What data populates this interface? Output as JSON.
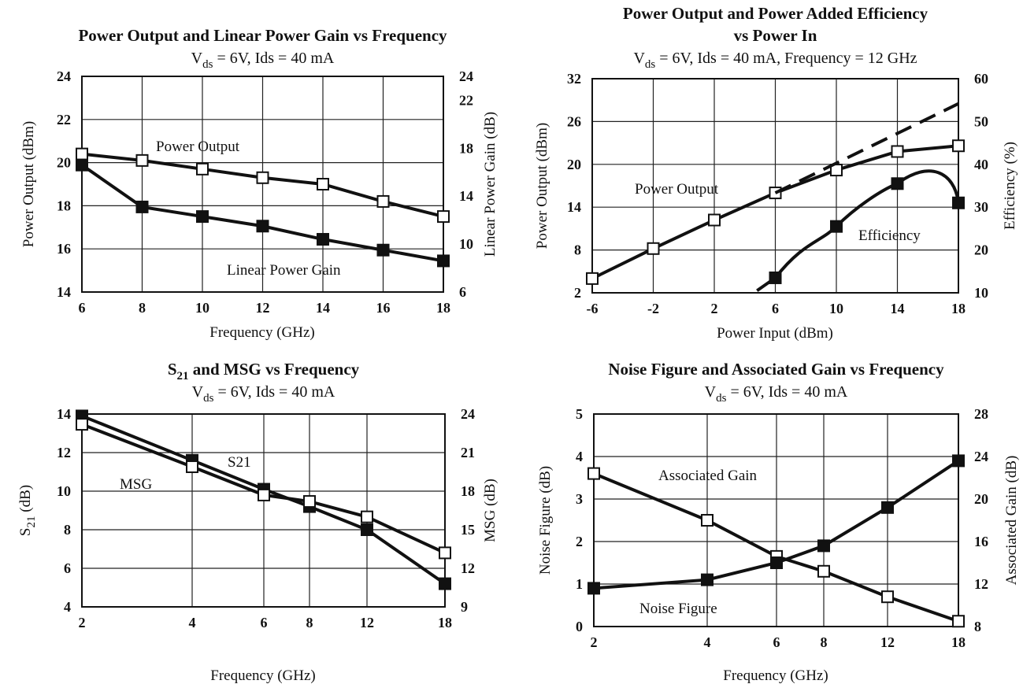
{
  "chart_data": [
    {
      "type": "line",
      "title": "Power Output and Linear Power Gain vs Frequency",
      "subtitle": [
        "V",
        "ds",
        " = 6V, Ids = 40 mA"
      ],
      "xlabel": "Frequency (GHz)",
      "ylabel": "Power Output (dBm)",
      "y2label": "Linear Power Gain (dB)",
      "x": [
        6,
        8,
        10,
        12,
        14,
        16,
        18
      ],
      "xlim": [
        6,
        18
      ],
      "ylim": [
        14,
        24
      ],
      "y2lim": [
        6,
        24
      ],
      "xticks": [
        "6",
        "8",
        "10",
        "12",
        "14",
        "16",
        "18"
      ],
      "yticks": [
        "14",
        "16",
        "18",
        "20",
        "22",
        "24"
      ],
      "y2ticks": [
        "6",
        "10",
        "14",
        "18",
        "22",
        "24"
      ],
      "grid": true,
      "series": [
        {
          "name": "Power Output",
          "axis": "left",
          "marker": "open-square",
          "values": [
            20.4,
            20.1,
            19.7,
            19.3,
            19.0,
            18.2,
            17.5
          ]
        },
        {
          "name": "Linear Power Gain",
          "axis": "right",
          "marker": "filled-square",
          "values": [
            16.6,
            13.1,
            12.3,
            11.5,
            10.4,
            9.5,
            8.6
          ]
        }
      ]
    },
    {
      "type": "line",
      "title": [
        "Power Output and Power Added Efficiency",
        "vs Power In"
      ],
      "subtitle": [
        "V",
        "ds",
        " = 6V, Ids = 40 mA, Frequency = 12 GHz"
      ],
      "xlabel": "Power Input (dBm)",
      "ylabel": "Power Output (dBm)",
      "y2label": "Efficiency (%)",
      "xlim": [
        -6,
        18
      ],
      "ylim": [
        2,
        32
      ],
      "y2lim": [
        10,
        60
      ],
      "xticks": [
        "-6",
        "-2",
        "2",
        "6",
        "10",
        "14",
        "18"
      ],
      "yticks": [
        "2",
        "8",
        "14",
        "20",
        "26",
        "32"
      ],
      "y2ticks": [
        "10",
        "20",
        "30",
        "40",
        "50",
        "60"
      ],
      "grid": true,
      "series": [
        {
          "name": "Power Output",
          "axis": "left",
          "marker": "open-square",
          "x": [
            -6,
            -2,
            2,
            6,
            10,
            14,
            18
          ],
          "values": [
            4.0,
            8.2,
            12.2,
            16.0,
            19.2,
            21.8,
            22.6
          ]
        },
        {
          "name": "Efficiency",
          "axis": "right",
          "marker": "filled-square",
          "x": [
            6,
            10,
            14,
            18
          ],
          "values": [
            13.5,
            25.5,
            35.5,
            31.0
          ]
        },
        {
          "axis": "left",
          "style": "dashed",
          "x": [
            6,
            18
          ],
          "values": [
            16.0,
            28.5
          ]
        }
      ]
    },
    {
      "type": "line",
      "title": [
        "S",
        "21",
        " and MSG vs Frequency"
      ],
      "subtitle": [
        "V",
        "ds",
        " = 6V, Ids = 40 mA"
      ],
      "xlabel": "Frequency (GHz)",
      "ylabel": [
        "S",
        "21",
        " (dB)"
      ],
      "y2label": "MSG (dB)",
      "x": [
        2,
        4,
        6,
        8,
        12,
        18
      ],
      "xlim": [
        2,
        18
      ],
      "ylim": [
        4,
        14
      ],
      "y2lim": [
        9,
        24
      ],
      "xticks": [
        "2",
        "4",
        "6",
        "8",
        "12",
        "18"
      ],
      "yticks": [
        "4",
        "6",
        "8",
        "10",
        "12",
        "14"
      ],
      "y2ticks": [
        "9",
        "12",
        "15",
        "18",
        "21",
        "24"
      ],
      "grid": true,
      "series": [
        {
          "name": "S21",
          "axis": "left",
          "marker": "filled-square",
          "values": [
            13.9,
            11.6,
            10.1,
            9.2,
            8.0,
            5.2
          ]
        },
        {
          "name": "MSG",
          "axis": "right",
          "marker": "open-square",
          "values": [
            23.2,
            19.9,
            17.7,
            17.2,
            16.0,
            13.2
          ]
        }
      ]
    },
    {
      "type": "line",
      "title": "Noise Figure and Associated Gain vs Frequency",
      "subtitle": [
        "V",
        "ds",
        " = 6V, Ids = 40 mA"
      ],
      "xlabel": "Frequency (GHz)",
      "ylabel": "Noise Figure (dB)",
      "y2label": "Associated Gain (dB)",
      "x": [
        2,
        4,
        6,
        8,
        12,
        18
      ],
      "xlim": [
        2,
        18
      ],
      "ylim": [
        0,
        5
      ],
      "y2lim": [
        8,
        28
      ],
      "xticks": [
        "2",
        "4",
        "6",
        "8",
        "12",
        "18"
      ],
      "yticks": [
        "0",
        "1",
        "2",
        "3",
        "4",
        "5"
      ],
      "y2ticks": [
        "8",
        "12",
        "16",
        "20",
        "24",
        "28"
      ],
      "grid": true,
      "series": [
        {
          "name": "Associated Gain",
          "axis": "right",
          "marker": "open-square",
          "values": [
            22.4,
            18.0,
            14.6,
            13.2,
            10.8,
            8.5
          ]
        },
        {
          "name": "Noise Figure",
          "axis": "left",
          "marker": "filled-square",
          "values": [
            0.9,
            1.1,
            1.5,
            1.9,
            2.8,
            3.9
          ]
        }
      ]
    }
  ]
}
